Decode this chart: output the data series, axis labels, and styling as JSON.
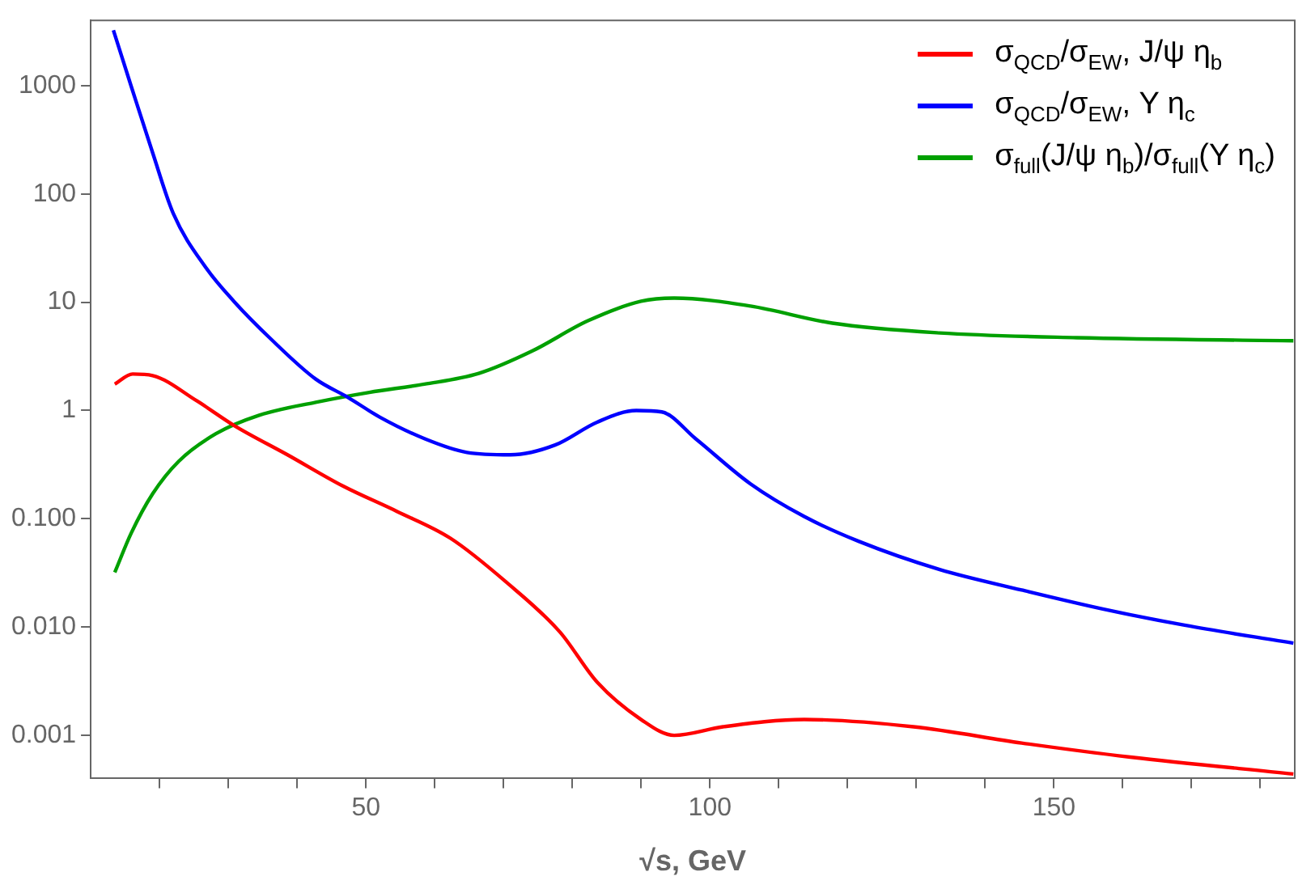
{
  "chart_data": {
    "type": "line",
    "xlabel": "√s, GeV",
    "log": "y",
    "grid": false,
    "legend": "top right",
    "marker": "none",
    "line_style": "solid",
    "xlim": [
      10,
      185
    ],
    "ylim": [
      0.0004,
      4000
    ],
    "xticks": [
      {
        "value": 20,
        "label": null
      },
      {
        "value": 30,
        "label": null
      },
      {
        "value": 40,
        "label": null
      },
      50,
      {
        "value": 60,
        "label": null
      },
      {
        "value": 70,
        "label": null
      },
      {
        "value": 80,
        "label": null
      },
      {
        "value": 90,
        "label": null
      },
      100,
      {
        "value": 110,
        "label": null
      },
      {
        "value": 120,
        "label": null
      },
      {
        "value": 130,
        "label": null
      },
      {
        "value": 140,
        "label": null
      },
      150,
      {
        "value": 160,
        "label": null
      },
      {
        "value": 170,
        "label": null
      },
      {
        "value": 180,
        "label": null
      }
    ],
    "yticks": [
      {
        "value": 0.001,
        "label": "0.001"
      },
      {
        "value": 0.01,
        "label": "0.010"
      },
      {
        "value": 0.1,
        "label": "0.100"
      },
      1,
      10,
      100,
      1000
    ],
    "series": [
      {
        "name": "σ$_{QCD}$/σ$_{EW}$, J/ψ η$_{b}$",
        "color": "#ff0000",
        "x": [
          13.5,
          16.1,
          19,
          25.4,
          30.8,
          38.6,
          46.7,
          54.5,
          62.3,
          70.4,
          78.2,
          83.6,
          90,
          94.8,
          101.9,
          113.7,
          129.6,
          145.3,
          161.1,
          184.8
        ],
        "values": [
          1.75,
          2.17,
          2.1,
          1.23,
          0.73,
          0.39,
          0.2,
          0.117,
          0.066,
          0.026,
          0.009,
          0.0031,
          0.0014,
          0.001,
          0.0012,
          0.0014,
          0.0012,
          0.00085,
          0.00063,
          0.00044
        ]
      },
      {
        "name": "σ$_{QCD}$/σ$_{EW}$, Υ η$_{c}$",
        "color": "#0000ff",
        "x": [
          13.3,
          15.9,
          19,
          22,
          26.8,
          30.8,
          36.3,
          42.7,
          47.4,
          52,
          58.5,
          64.7,
          71,
          77.5,
          83.6,
          89.3,
          93,
          97.9,
          105.9,
          113.7,
          121.6,
          133.4,
          145.3,
          157.1,
          169,
          184.8
        ],
        "values": [
          3240,
          980,
          240,
          66,
          20.6,
          10.2,
          4.5,
          1.95,
          1.32,
          0.87,
          0.55,
          0.41,
          0.39,
          0.48,
          0.78,
          1.0,
          0.97,
          0.55,
          0.21,
          0.105,
          0.062,
          0.034,
          0.022,
          0.0147,
          0.0104,
          0.0071
        ]
      },
      {
        "name": "σ$_{full}$(J/ψ η$_{b}$)/σ$_{full}$(Υ η$_{c}$)",
        "color": "#00a000",
        "x": [
          13.5,
          15.9,
          19,
          22.8,
          28.2,
          34.4,
          42.7,
          50.5,
          58.5,
          66.4,
          74.2,
          82.2,
          90,
          94.8,
          105.9,
          117.8,
          133.4,
          153.3,
          184.8
        ],
        "values": [
          0.032,
          0.074,
          0.17,
          0.34,
          0.61,
          0.9,
          1.19,
          1.47,
          1.75,
          2.2,
          3.55,
          6.7,
          10.2,
          10.9,
          9.2,
          6.4,
          5.2,
          4.7,
          4.4
        ]
      }
    ]
  }
}
